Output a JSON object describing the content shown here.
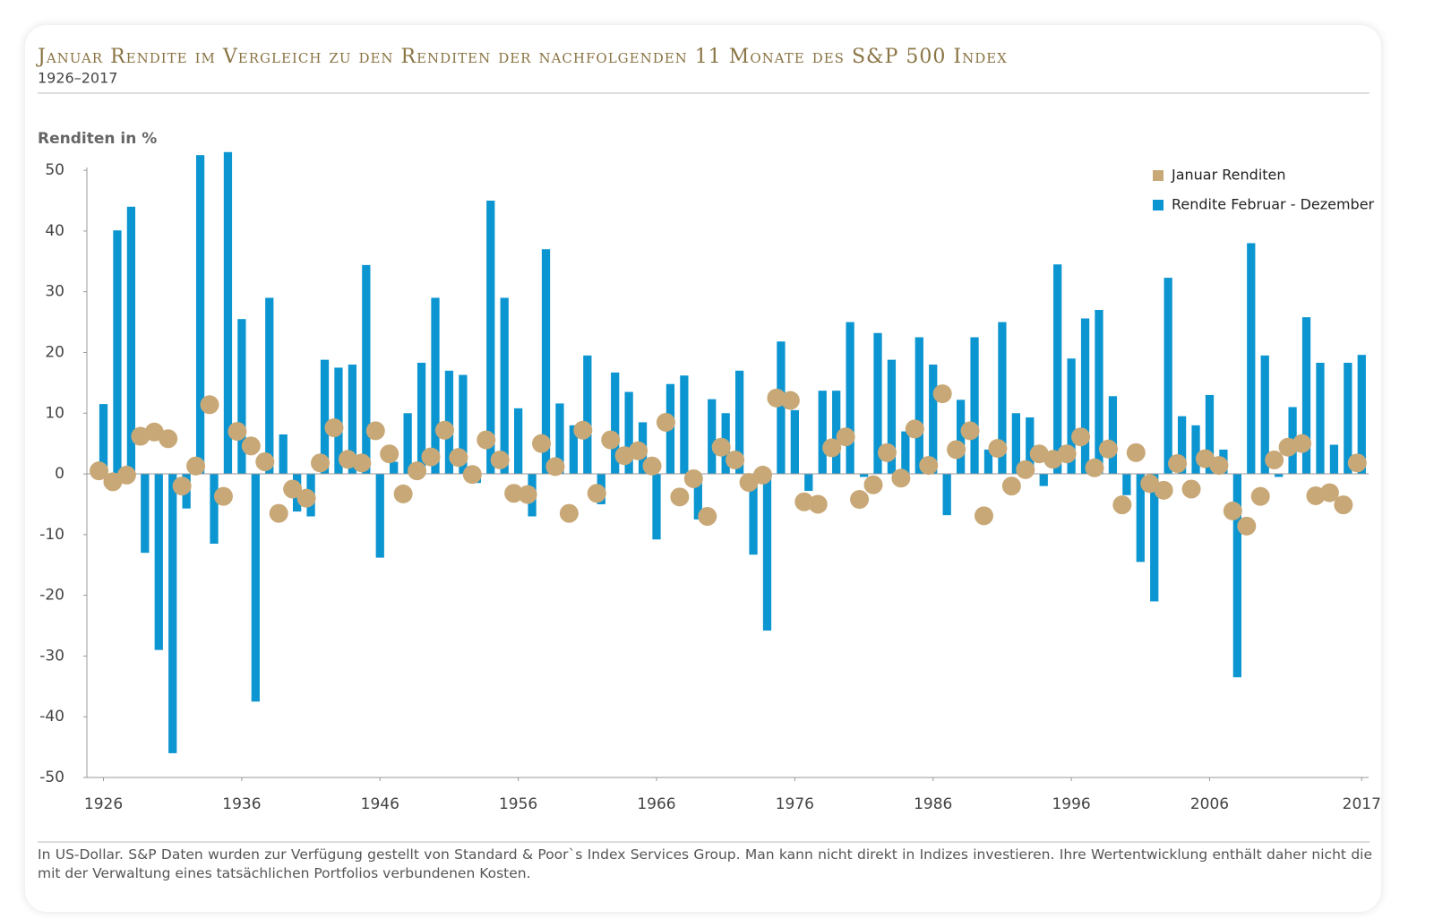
{
  "chart_data": {
    "type": "bar_dot",
    "title": "Januar Rendite im Vergleich zu den Renditen der nachfolgenden 11 Monate des S&P 500 Index",
    "subtitle": "1926–2017",
    "ylabel": "Renditen in %",
    "footnote": "In US-Dollar. S&P Daten wurden zur Verfügung gestellt von Standard & Poor`s Index Services Group. Man kann nicht direkt in Indizes investieren. Ihre Wertentwicklung enthält daher nicht die mit der Verwaltung eines tatsächlichen Portfolios verbundenen Kosten.",
    "legend": "upper right",
    "x": [
      1926,
      1927,
      1928,
      1929,
      1930,
      1931,
      1932,
      1933,
      1934,
      1935,
      1936,
      1937,
      1938,
      1939,
      1940,
      1941,
      1942,
      1943,
      1944,
      1945,
      1946,
      1947,
      1948,
      1949,
      1950,
      1951,
      1952,
      1953,
      1954,
      1955,
      1956,
      1957,
      1958,
      1959,
      1960,
      1961,
      1962,
      1963,
      1964,
      1965,
      1966,
      1967,
      1968,
      1969,
      1970,
      1971,
      1972,
      1973,
      1974,
      1975,
      1976,
      1977,
      1978,
      1979,
      1980,
      1981,
      1982,
      1983,
      1984,
      1985,
      1986,
      1987,
      1988,
      1989,
      1990,
      1991,
      1992,
      1993,
      1994,
      1995,
      1996,
      1997,
      1998,
      1999,
      2000,
      2001,
      2002,
      2003,
      2004,
      2005,
      2006,
      2007,
      2008,
      2009,
      2010,
      2011,
      2012,
      2013,
      2014,
      2015,
      2016,
      2017
    ],
    "series": [
      {
        "name": "Januar Renditen",
        "mark": "dot",
        "color": "#c8a877",
        "values": [
          0.5,
          -1.3,
          -0.2,
          6.2,
          6.9,
          5.8,
          -2,
          1.3,
          11.4,
          -3.7,
          7,
          4.6,
          2,
          -6.5,
          -2.5,
          -4,
          1.8,
          7.6,
          2.4,
          1.8,
          7.1,
          3.3,
          -3.3,
          0.5,
          2.8,
          7.2,
          2.7,
          -0.1,
          5.6,
          2.3,
          -3.2,
          -3.4,
          5,
          1.2,
          -6.5,
          7.2,
          -3.2,
          5.6,
          3,
          3.8,
          1.3,
          8.5,
          -3.8,
          -0.8,
          -7,
          4.4,
          2.3,
          -1.4,
          -0.2,
          12.5,
          12.1,
          -4.6,
          -5,
          4.3,
          6.1,
          -4.2,
          -1.8,
          3.5,
          -0.7,
          7.4,
          1.4,
          13.2,
          4,
          7.1,
          -6.9,
          4.2,
          -2,
          0.7,
          3.3,
          2.4,
          3.3,
          6.1,
          1,
          4.1,
          -5.1,
          3.5,
          -1.6,
          -2.7,
          1.7,
          -2.5,
          2.5,
          1.4,
          -6.1,
          -8.6,
          -3.7,
          2.3,
          4.4,
          5,
          -3.6,
          -3.1,
          -5.1,
          1.8
        ]
      },
      {
        "name": "Rendite Februar - Dezember",
        "mark": "bar",
        "color": "#0b95d1",
        "values": [
          11.5,
          40.1,
          44,
          -13,
          -29,
          -46,
          -5.7,
          52.5,
          -11.5,
          53,
          25.5,
          -37.5,
          29,
          6.5,
          -6.2,
          -7,
          18.8,
          17.5,
          18,
          34.4,
          -13.8,
          2,
          10,
          18.3,
          29,
          17,
          16.3,
          -1.5,
          45,
          29,
          10.8,
          -7,
          37,
          11.6,
          8,
          19.5,
          -5,
          16.7,
          13.5,
          8.5,
          -10.8,
          14.8,
          16.2,
          -7.5,
          12.3,
          10,
          17,
          -13.3,
          -25.8,
          21.8,
          10.5,
          -2.8,
          13.7,
          13.7,
          25,
          -0.5,
          23.2,
          18.8,
          7,
          22.5,
          18,
          -6.8,
          12.2,
          22.5,
          4,
          25,
          10,
          9.3,
          -2,
          34.5,
          19,
          25.6,
          27,
          12.8,
          -3.5,
          -14.5,
          -21,
          32.3,
          9.5,
          8,
          13,
          4,
          -33.5,
          38,
          19.5,
          -0.5,
          11,
          25.8,
          18.3,
          4.8,
          18.3,
          19.6
        ]
      }
    ],
    "xlim": [
      1924.8,
      2017.5
    ],
    "xticks": [
      1926,
      1936,
      1946,
      1956,
      1966,
      1976,
      1986,
      1996,
      2006,
      2017
    ],
    "ylim": [
      -50,
      54
    ],
    "yticks": [
      -50,
      -40,
      -30,
      -20,
      -10,
      0,
      10,
      20,
      30,
      40,
      50
    ]
  }
}
